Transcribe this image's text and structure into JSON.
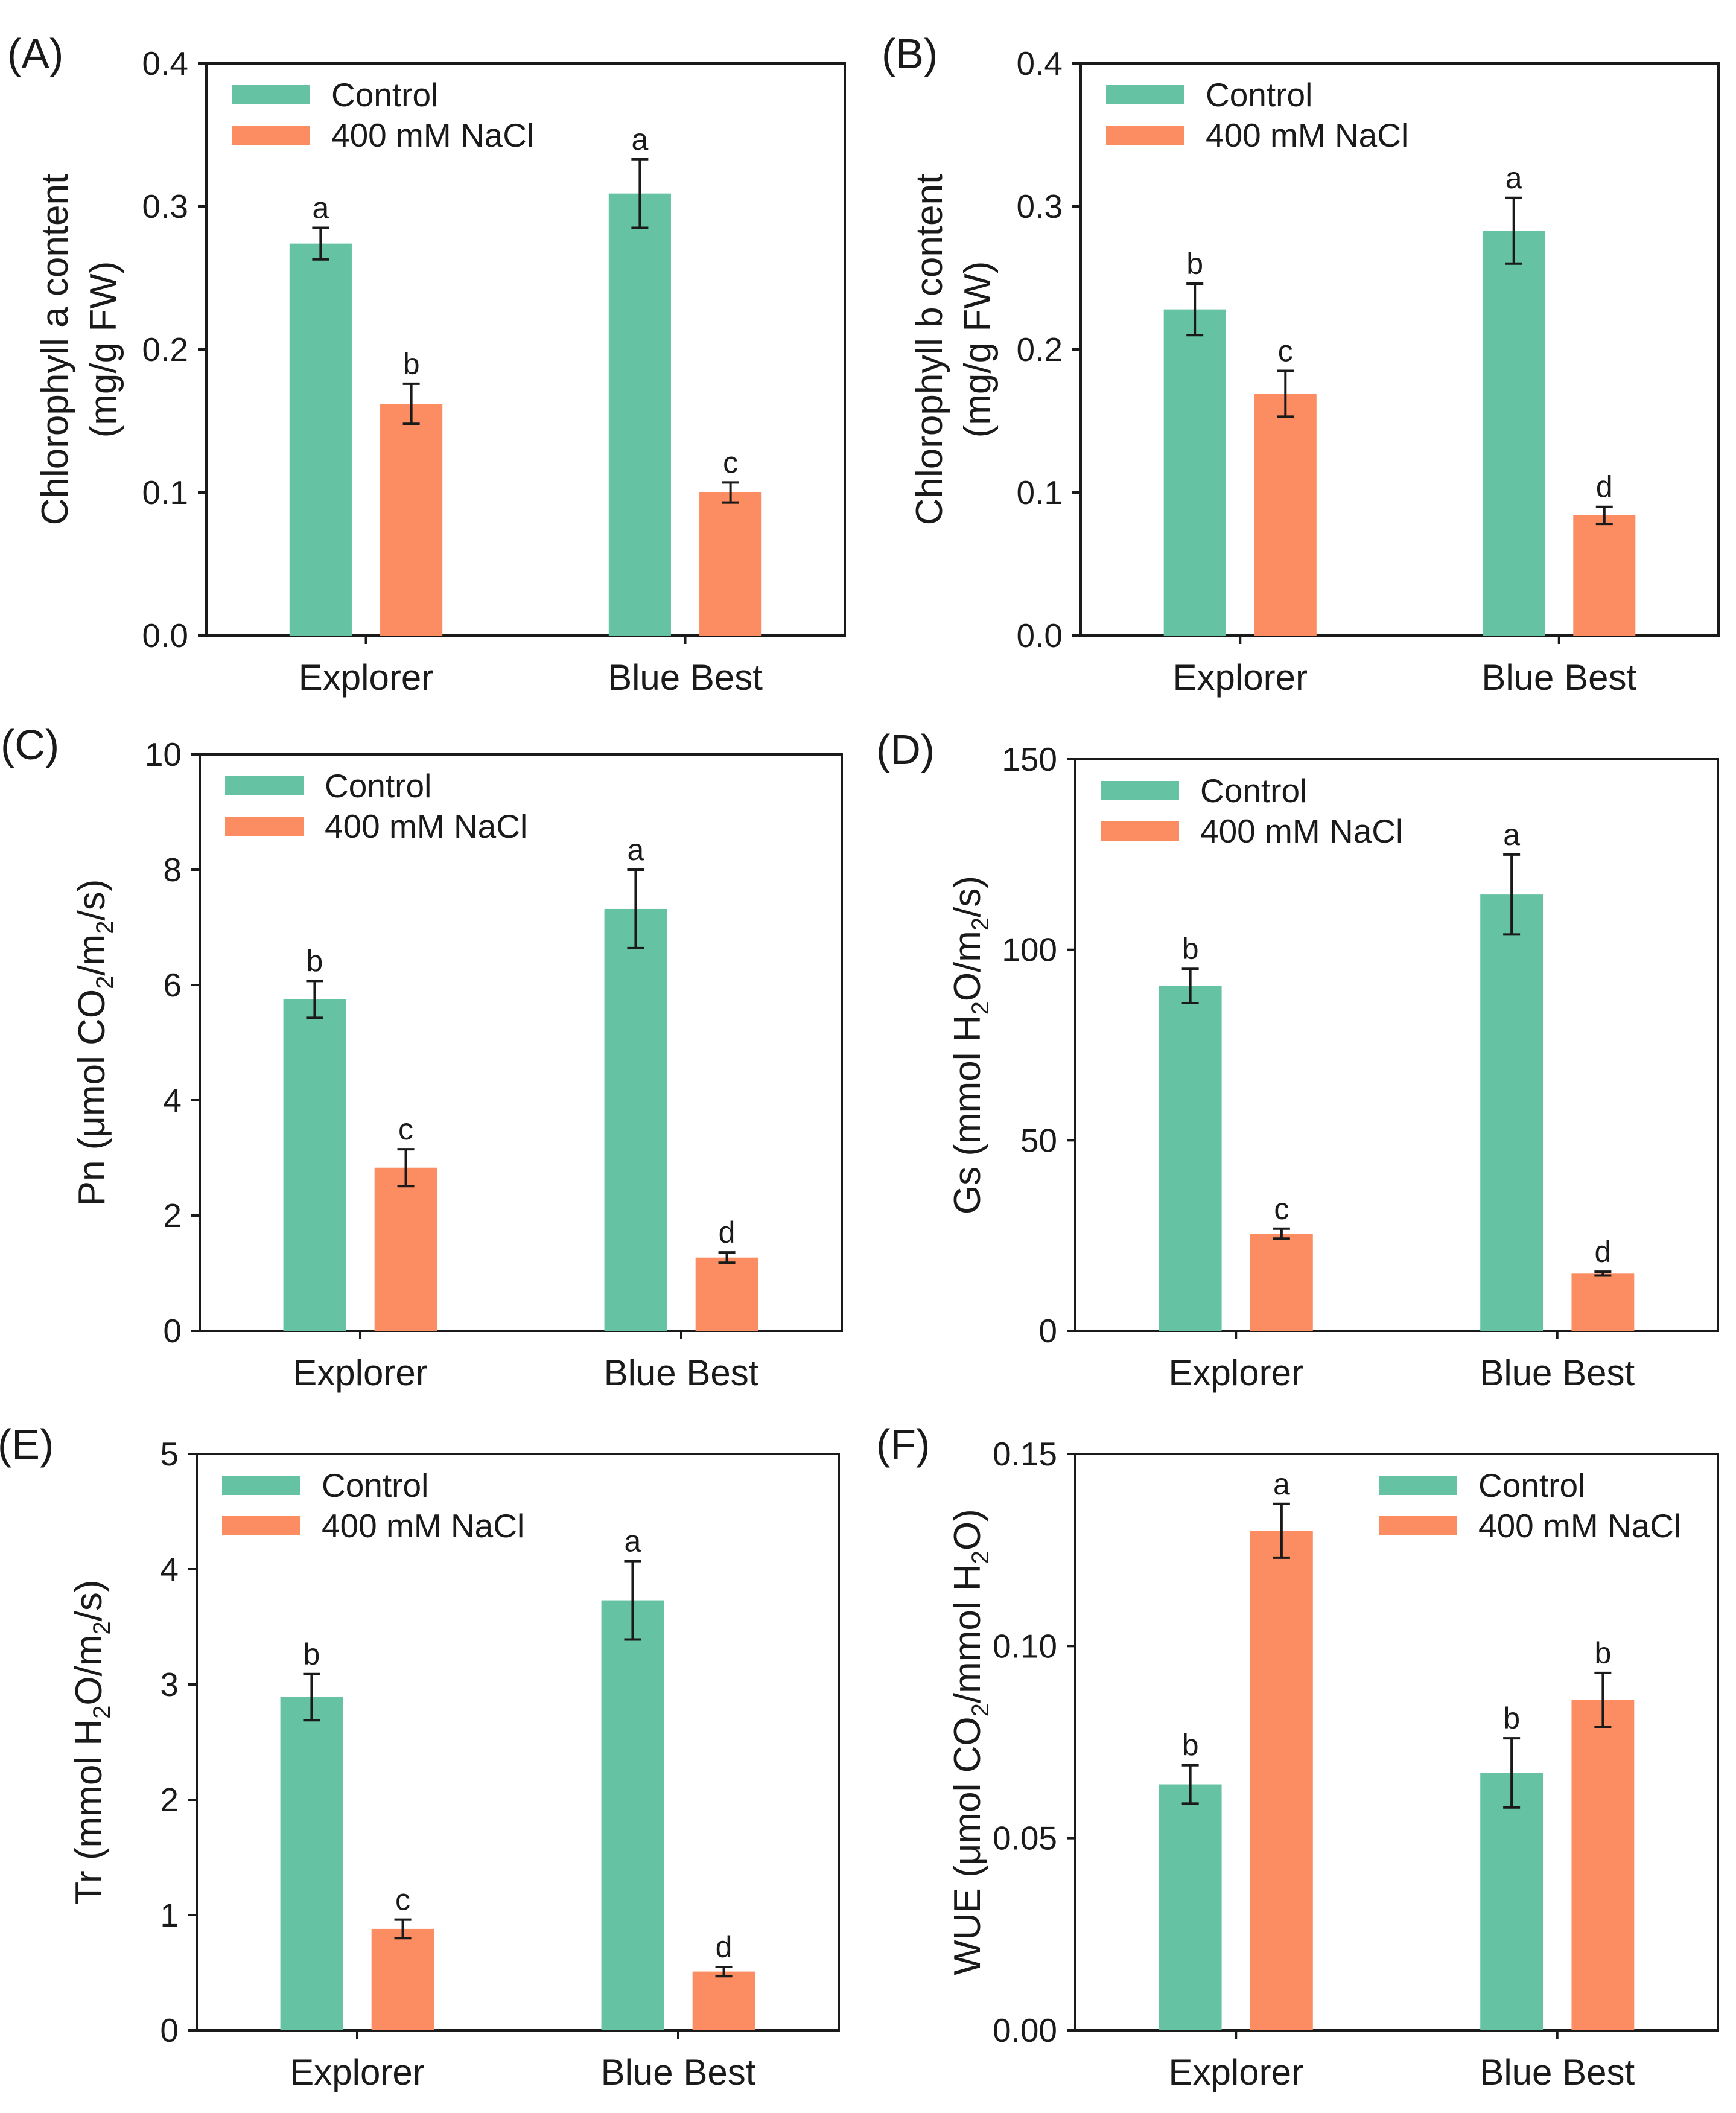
{
  "colors": {
    "control": "#65c3a4",
    "nacl": "#fc8d62",
    "axis": "#1a1a1a",
    "background": "#ffffff"
  },
  "chart_data": [
    {
      "panel": "(A)",
      "type": "bar",
      "categories": [
        "Explorer",
        "Blue Best"
      ],
      "ylabel_lines": [
        "Chlorophyll a content",
        "(mg/g FW)"
      ],
      "ylim": [
        0,
        0.4
      ],
      "yticks": [
        "0.0",
        "0.1",
        "0.2",
        "0.3",
        "0.4"
      ],
      "legend": {
        "position": "top-left"
      },
      "series": [
        {
          "name": "Control",
          "values": [
            0.274,
            0.309
          ],
          "errors": [
            0.011,
            0.024
          ],
          "letters": [
            "a",
            "a"
          ]
        },
        {
          "name": "400 mM NaCl",
          "values": [
            0.162,
            0.1
          ],
          "errors": [
            0.014,
            0.007
          ],
          "letters": [
            "b",
            "c"
          ]
        }
      ]
    },
    {
      "panel": "(B)",
      "type": "bar",
      "categories": [
        "Explorer",
        "Blue Best"
      ],
      "ylabel_lines": [
        "Chlorophyll b content",
        "(mg/g FW)"
      ],
      "ylim": [
        0,
        0.4
      ],
      "yticks": [
        "0.0",
        "0.1",
        "0.2",
        "0.3",
        "0.4"
      ],
      "legend": {
        "position": "top-left"
      },
      "series": [
        {
          "name": "Control",
          "values": [
            0.228,
            0.283
          ],
          "errors": [
            0.018,
            0.023
          ],
          "letters": [
            "b",
            "a"
          ]
        },
        {
          "name": "400 mM NaCl",
          "values": [
            0.169,
            0.084
          ],
          "errors": [
            0.016,
            0.006
          ],
          "letters": [
            "c",
            "d"
          ]
        }
      ]
    },
    {
      "panel": "(C)",
      "type": "bar",
      "categories": [
        "Explorer",
        "Blue Best"
      ],
      "ylabel_parts": [
        "Pn (μmol CO",
        "2",
        "/m",
        "2",
        "/s)"
      ],
      "ylim": [
        0,
        10
      ],
      "yticks": [
        "0",
        "2",
        "4",
        "6",
        "8",
        "10"
      ],
      "legend": {
        "position": "top-left"
      },
      "series": [
        {
          "name": "Control",
          "values": [
            5.75,
            7.32
          ],
          "errors": [
            0.32,
            0.68
          ],
          "letters": [
            "b",
            "a"
          ]
        },
        {
          "name": "400 mM NaCl",
          "values": [
            2.83,
            1.27
          ],
          "errors": [
            0.32,
            0.09
          ],
          "letters": [
            "c",
            "d"
          ]
        }
      ]
    },
    {
      "panel": "(D)",
      "type": "bar",
      "categories": [
        "Explorer",
        "Blue Best"
      ],
      "ylabel_parts": [
        "Gs (mmol H",
        "2",
        "O/m",
        "2",
        "/s)"
      ],
      "ylim": [
        0,
        150
      ],
      "yticks": [
        "0",
        "50",
        "100",
        "150"
      ],
      "legend": {
        "position": "top-left"
      },
      "series": [
        {
          "name": "Control",
          "values": [
            90.5,
            114.5
          ],
          "errors": [
            4.5,
            10.5
          ],
          "letters": [
            "b",
            "a"
          ]
        },
        {
          "name": "400 mM NaCl",
          "values": [
            25.5,
            15.0
          ],
          "errors": [
            1.3,
            0.5
          ],
          "letters": [
            "c",
            "d"
          ]
        }
      ]
    },
    {
      "panel": "(E)",
      "type": "bar",
      "categories": [
        "Explorer",
        "Blue Best"
      ],
      "ylabel_parts": [
        "Tr (mmol H",
        "2",
        "O/m",
        "2",
        "/s)"
      ],
      "ylim": [
        0,
        5
      ],
      "yticks": [
        "0",
        "1",
        "2",
        "3",
        "4",
        "5"
      ],
      "legend": {
        "position": "top-left"
      },
      "series": [
        {
          "name": "Control",
          "values": [
            2.89,
            3.73
          ],
          "errors": [
            0.2,
            0.34
          ],
          "letters": [
            "b",
            "a"
          ]
        },
        {
          "name": "400 mM NaCl",
          "values": [
            0.88,
            0.51
          ],
          "errors": [
            0.08,
            0.04
          ],
          "letters": [
            "c",
            "d"
          ]
        }
      ]
    },
    {
      "panel": "(F)",
      "type": "bar",
      "categories": [
        "Explorer",
        "Blue Best"
      ],
      "ylabel_parts": [
        "WUE (μmol CO",
        "2",
        "/mmol H",
        "2",
        "O)"
      ],
      "ylim": [
        0,
        0.15
      ],
      "yticks": [
        "0.00",
        "0.05",
        "0.10",
        "0.15"
      ],
      "legend": {
        "position": "top-right"
      },
      "series": [
        {
          "name": "Control",
          "values": [
            0.064,
            0.067
          ],
          "errors": [
            0.005,
            0.009
          ],
          "letters": [
            "b",
            "b"
          ]
        },
        {
          "name": "400 mM NaCl",
          "values": [
            0.13,
            0.086
          ],
          "errors": [
            0.007,
            0.007
          ],
          "letters": [
            "a",
            "b"
          ]
        }
      ]
    }
  ]
}
